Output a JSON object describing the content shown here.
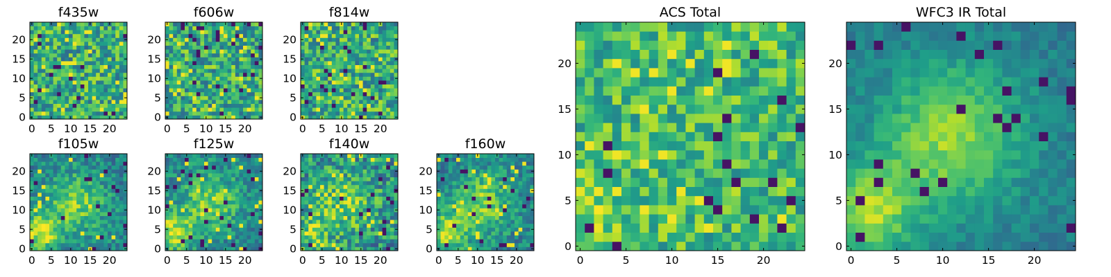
{
  "chart_data": [
    {
      "type": "heatmap",
      "title": "f435w",
      "colormap": "viridis",
      "x_range": [
        0,
        24
      ],
      "y_range": [
        0,
        24
      ],
      "x_ticks": [
        0,
        5,
        10,
        15,
        20
      ],
      "y_ticks": [
        0,
        5,
        10,
        15,
        20
      ],
      "grid_size": 25,
      "pattern": "noise",
      "seed": 11
    },
    {
      "type": "heatmap",
      "title": "f606w",
      "colormap": "viridis",
      "x_range": [
        0,
        24
      ],
      "y_range": [
        0,
        24
      ],
      "x_ticks": [
        0,
        5,
        10,
        15,
        20
      ],
      "y_ticks": [
        0,
        5,
        10,
        15,
        20
      ],
      "grid_size": 25,
      "pattern": "noise",
      "seed": 23
    },
    {
      "type": "heatmap",
      "title": "f814w",
      "colormap": "viridis",
      "x_range": [
        0,
        24
      ],
      "y_range": [
        0,
        24
      ],
      "x_ticks": [
        0,
        5,
        10,
        15,
        20
      ],
      "y_ticks": [
        0,
        5,
        10,
        15,
        20
      ],
      "grid_size": 25,
      "pattern": "noise",
      "seed": 37
    },
    {
      "type": "heatmap",
      "title": "f105w",
      "colormap": "viridis",
      "x_range": [
        0,
        24
      ],
      "y_range": [
        0,
        24
      ],
      "x_ticks": [
        0,
        5,
        10,
        15,
        20
      ],
      "y_ticks": [
        0,
        5,
        10,
        15,
        20
      ],
      "grid_size": 25,
      "pattern": "galaxy",
      "seed": 41
    },
    {
      "type": "heatmap",
      "title": "f125w",
      "colormap": "viridis",
      "x_range": [
        0,
        24
      ],
      "y_range": [
        0,
        24
      ],
      "x_ticks": [
        0,
        5,
        10,
        15,
        20
      ],
      "y_ticks": [
        0,
        5,
        10,
        15,
        20
      ],
      "grid_size": 25,
      "pattern": "galaxy",
      "seed": 53
    },
    {
      "type": "heatmap",
      "title": "f140w",
      "colormap": "viridis",
      "x_range": [
        0,
        24
      ],
      "y_range": [
        0,
        24
      ],
      "x_ticks": [
        0,
        5,
        10,
        15,
        20
      ],
      "y_ticks": [
        0,
        5,
        10,
        15,
        20
      ],
      "grid_size": 25,
      "pattern": "galaxy-noisy",
      "seed": 67
    },
    {
      "type": "heatmap",
      "title": "f160w",
      "colormap": "viridis",
      "x_range": [
        0,
        24
      ],
      "y_range": [
        0,
        24
      ],
      "x_ticks": [
        0,
        5,
        10,
        15,
        20
      ],
      "y_ticks": [
        0,
        5,
        10,
        15,
        20
      ],
      "grid_size": 25,
      "pattern": "galaxy",
      "seed": 79
    },
    {
      "type": "heatmap",
      "title": "ACS Total",
      "colormap": "viridis",
      "x_range": [
        0,
        24
      ],
      "y_range": [
        0,
        24
      ],
      "x_ticks": [
        0,
        5,
        10,
        15,
        20
      ],
      "y_ticks": [
        0,
        5,
        10,
        15,
        20
      ],
      "grid_size": 25,
      "pattern": "noise-bright",
      "seed": 97
    },
    {
      "type": "heatmap",
      "title": "WFC3 IR Total",
      "colormap": "viridis",
      "x_range": [
        0,
        24
      ],
      "y_range": [
        0,
        24
      ],
      "x_ticks": [
        0,
        5,
        10,
        15,
        20
      ],
      "y_ticks": [
        0,
        5,
        10,
        15,
        20
      ],
      "grid_size": 25,
      "pattern": "galaxy-smooth",
      "seed": 113
    }
  ]
}
